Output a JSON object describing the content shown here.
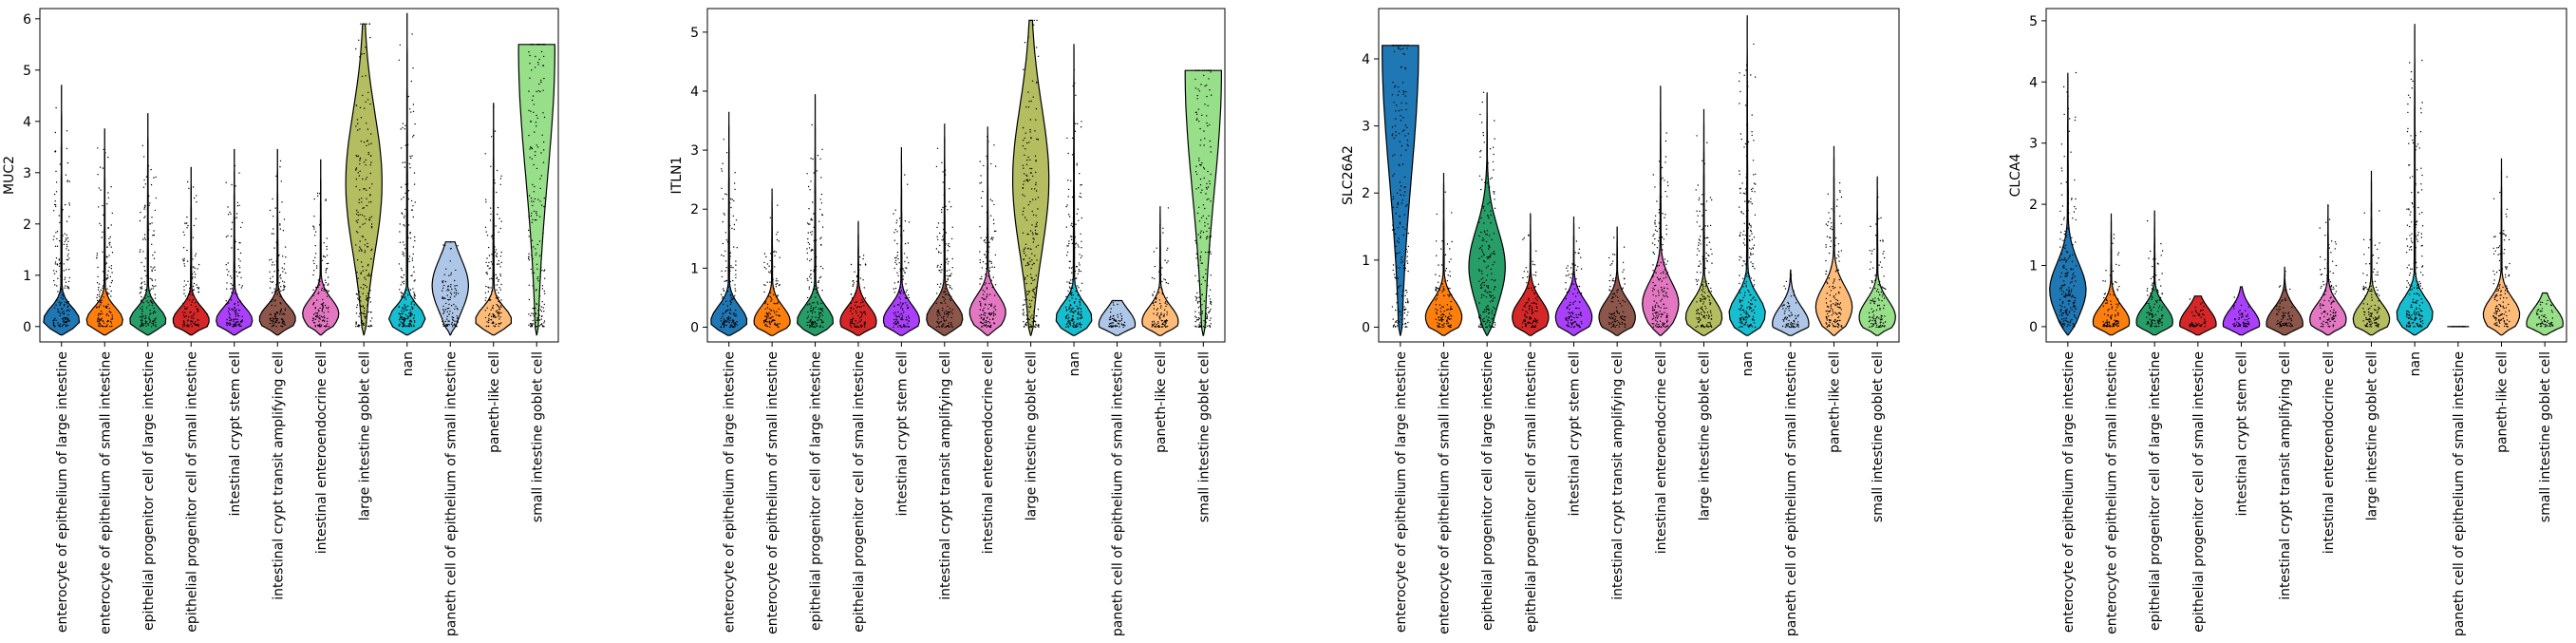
{
  "chart_data": [
    {
      "type": "violin",
      "ylabel": "MUC2",
      "ylim": [
        -0.3,
        6.2
      ],
      "yticks": [
        0,
        1,
        2,
        3,
        4,
        5,
        6
      ],
      "categories": [
        "enterocyte of epithelium of large intestine",
        "enterocyte of epithelium of small intestine",
        "epithelial progenitor cell of large intestine",
        "epithelial progenitor cell of small intestine",
        "intestinal crypt stem cell",
        "intestinal crypt transit amplifying cell",
        "intestinal enteroendocrine cell",
        "large intestine goblet cell",
        "nan",
        "paneth cell of epithelium of small intestine",
        "paneth-like cell",
        "small intestine goblet cell"
      ],
      "max_values": [
        4.7,
        3.85,
        4.15,
        3.1,
        3.45,
        3.45,
        3.25,
        5.9,
        6.1,
        1.65,
        4.35,
        5.5
      ],
      "peak_values": [
        0.12,
        0.12,
        0.12,
        0.12,
        0.12,
        0.15,
        0.25,
        2.8,
        0.15,
        0.8,
        0.12,
        5.4
      ],
      "colors": [
        "#1f77b4",
        "#ff7f0e",
        "#279e68",
        "#d62728",
        "#aa40fc",
        "#8c564b",
        "#e377c2",
        "#b5bd61",
        "#17becf",
        "#aec7e8",
        "#ffbb78",
        "#98df8a"
      ]
    },
    {
      "type": "violin",
      "ylabel": "ITLN1",
      "ylim": [
        -0.25,
        5.4
      ],
      "yticks": [
        0,
        1,
        2,
        3,
        4,
        5
      ],
      "categories": [
        "enterocyte of epithelium of large intestine",
        "enterocyte of epithelium of small intestine",
        "epithelial progenitor cell of large intestine",
        "epithelial progenitor cell of small intestine",
        "intestinal crypt stem cell",
        "intestinal crypt transit amplifying cell",
        "intestinal enteroendocrine cell",
        "large intestine goblet cell",
        "nan",
        "paneth cell of epithelium of small intestine",
        "paneth-like cell",
        "small intestine goblet cell"
      ],
      "max_values": [
        3.65,
        2.35,
        3.95,
        1.8,
        3.05,
        3.45,
        3.4,
        5.2,
        4.8,
        0.45,
        2.05,
        4.35
      ],
      "peak_values": [
        0.1,
        0.1,
        0.1,
        0.1,
        0.12,
        0.15,
        0.25,
        2.5,
        0.15,
        0.05,
        0.1,
        4.3
      ],
      "colors": [
        "#1f77b4",
        "#ff7f0e",
        "#279e68",
        "#d62728",
        "#aa40fc",
        "#8c564b",
        "#e377c2",
        "#b5bd61",
        "#17becf",
        "#aec7e8",
        "#ffbb78",
        "#98df8a"
      ]
    },
    {
      "type": "violin",
      "ylabel": "SLC26A2",
      "ylim": [
        -0.22,
        4.75
      ],
      "yticks": [
        0,
        1,
        2,
        3,
        4
      ],
      "categories": [
        "enterocyte of epithelium of large intestine",
        "enterocyte of epithelium of small intestine",
        "epithelial progenitor cell of large intestine",
        "epithelial progenitor cell of small intestine",
        "intestinal crypt stem cell",
        "intestinal crypt transit amplifying cell",
        "intestinal enteroendocrine cell",
        "large intestine goblet cell",
        "nan",
        "paneth cell of epithelium of small intestine",
        "paneth-like cell",
        "small intestine goblet cell"
      ],
      "max_values": [
        4.2,
        2.3,
        3.5,
        1.7,
        1.65,
        1.5,
        3.6,
        3.25,
        4.65,
        0.85,
        2.7,
        2.25
      ],
      "peak_values": [
        4.2,
        0.15,
        0.9,
        0.15,
        0.15,
        0.15,
        0.35,
        0.15,
        0.2,
        0.05,
        0.3,
        0.15
      ],
      "colors": [
        "#1f77b4",
        "#ff7f0e",
        "#279e68",
        "#d62728",
        "#aa40fc",
        "#8c564b",
        "#e377c2",
        "#b5bd61",
        "#17becf",
        "#aec7e8",
        "#ffbb78",
        "#98df8a"
      ]
    },
    {
      "type": "violin",
      "ylabel": "CLCA4",
      "ylim": [
        -0.25,
        5.2
      ],
      "yticks": [
        0,
        1,
        2,
        3,
        4,
        5
      ],
      "categories": [
        "enterocyte of epithelium of large intestine",
        "enterocyte of epithelium of small intestine",
        "epithelial progenitor cell of large intestine",
        "epithelial progenitor cell of small intestine",
        "intestinal crypt stem cell",
        "intestinal crypt transit amplifying cell",
        "intestinal enteroendocrine cell",
        "large intestine goblet cell",
        "nan",
        "paneth cell of epithelium of small intestine",
        "paneth-like cell",
        "small intestine goblet cell"
      ],
      "max_values": [
        4.15,
        1.85,
        1.9,
        0.5,
        0.65,
        0.98,
        2.0,
        2.55,
        4.95,
        0.0,
        2.75,
        0.55
      ],
      "peak_values": [
        0.6,
        0.08,
        0.08,
        0.04,
        0.04,
        0.05,
        0.12,
        0.12,
        0.2,
        0.0,
        0.2,
        0.05
      ],
      "colors": [
        "#1f77b4",
        "#ff7f0e",
        "#279e68",
        "#d62728",
        "#aa40fc",
        "#8c564b",
        "#e377c2",
        "#b5bd61",
        "#17becf",
        "#aec7e8",
        "#ffbb78",
        "#98df8a"
      ]
    }
  ]
}
